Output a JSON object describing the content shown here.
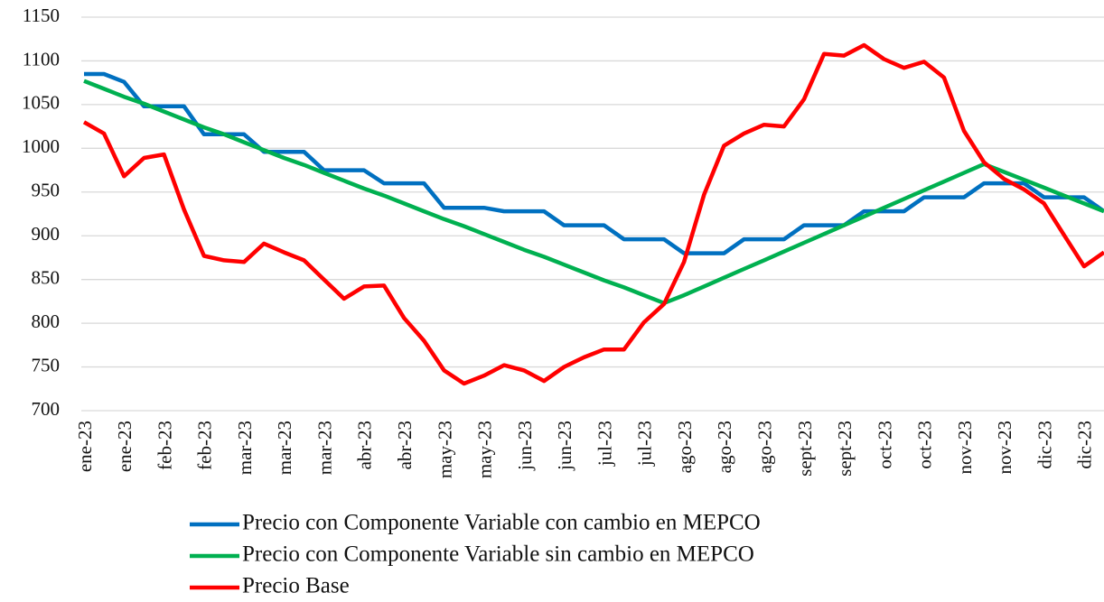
{
  "chart_data": {
    "type": "line",
    "categories": [
      "ene-23",
      null,
      "ene-23",
      null,
      "feb-23",
      null,
      "feb-23",
      null,
      "mar-23",
      null,
      "mar-23",
      null,
      "mar-23",
      null,
      "abr-23",
      null,
      "abr-23",
      null,
      "may-23",
      null,
      "may-23",
      null,
      "jun-23",
      null,
      "jun-23",
      null,
      "jul-23",
      null,
      "jul-23",
      null,
      "ago-23",
      null,
      "ago-23",
      null,
      "ago-23",
      null,
      "sept-23",
      null,
      "sept-23",
      null,
      "oct-23",
      null,
      "oct-23",
      null,
      "nov-23",
      null,
      "nov-23",
      null,
      "dic-23",
      null,
      "dic-23",
      null
    ],
    "series": [
      {
        "name": "Precio con Componente Variable con cambio en MEPCO",
        "color": "#0070c0",
        "values": [
          1085,
          1085,
          1076,
          1048,
          1048,
          1048,
          1016,
          1016,
          1016,
          996,
          996,
          996,
          975,
          975,
          975,
          960,
          960,
          960,
          932,
          932,
          932,
          928,
          928,
          928,
          912,
          912,
          912,
          896,
          896,
          896,
          880,
          880,
          880,
          896,
          896,
          896,
          912,
          912,
          912,
          928,
          928,
          928,
          944,
          944,
          944,
          960,
          960,
          960,
          944,
          944,
          944,
          928
        ]
      },
      {
        "name": "Precio con Componente Variable sin cambio en MEPCO",
        "color": "#00b050",
        "values": [
          1077,
          1068,
          1059,
          1051,
          1042,
          1033,
          1024,
          1016,
          1007,
          998,
          989,
          981,
          972,
          963,
          954,
          946,
          937,
          928,
          919,
          911,
          902,
          893,
          884,
          876,
          867,
          858,
          849,
          841,
          832,
          823,
          832,
          842,
          852,
          862,
          872,
          882,
          892,
          902,
          912,
          922,
          932,
          942,
          952,
          962,
          972,
          982,
          973,
          964,
          955,
          946,
          937,
          928
        ]
      },
      {
        "name": "Precio Base",
        "color": "#ff0000",
        "values": [
          1030,
          1017,
          968,
          989,
          993,
          930,
          877,
          872,
          870,
          891,
          881,
          872,
          850,
          828,
          842,
          843,
          806,
          780,
          746,
          731,
          740,
          752,
          746,
          734,
          750,
          761,
          770,
          770,
          801,
          822,
          870,
          947,
          1003,
          1017,
          1027,
          1025,
          1056,
          1108,
          1106,
          1118,
          1102,
          1092,
          1099,
          1081,
          1020,
          984,
          965,
          953,
          937,
          901,
          865,
          881
        ]
      }
    ],
    "ylim": [
      700,
      1150
    ],
    "yticks": [
      700,
      750,
      800,
      850,
      900,
      950,
      1000,
      1050,
      1100,
      1150
    ],
    "grid": true,
    "legend": "bottom"
  }
}
